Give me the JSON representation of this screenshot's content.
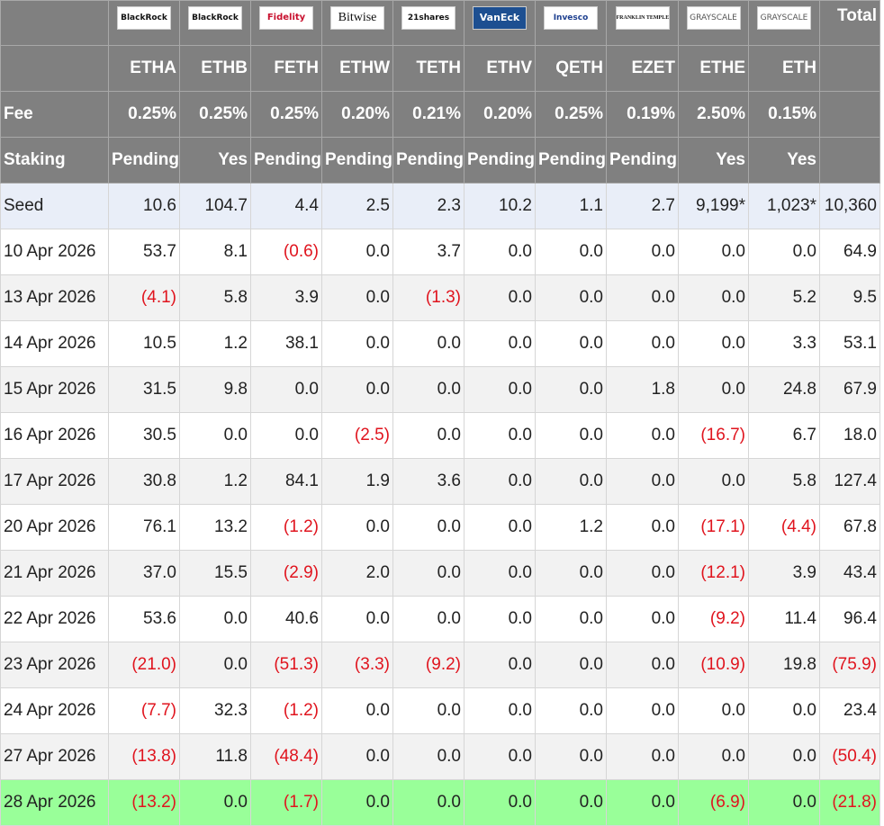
{
  "table": {
    "brands": [
      "BlackRock",
      "BlackRock",
      "Fidelity",
      "Bitwise",
      "21shares",
      "VanEck",
      "Invesco",
      "FRANKLIN TEMPLETON",
      "GRAYSCALE",
      "GRAYSCALE"
    ],
    "total_label": "Total",
    "tickers": [
      "ETHA",
      "ETHB",
      "FETH",
      "ETHW",
      "TETH",
      "ETHV",
      "QETH",
      "EZET",
      "ETHE",
      "ETH"
    ],
    "fee": [
      "Fee",
      "0.25%",
      "0.25%",
      "0.25%",
      "0.20%",
      "0.21%",
      "0.20%",
      "0.25%",
      "0.19%",
      "2.50%",
      "0.15%"
    ],
    "staking": [
      "Staking",
      "Pending",
      "Yes",
      "Pending",
      "Pending",
      "Pending",
      "Pending",
      "Pending",
      "Pending",
      "Yes",
      "Yes"
    ],
    "rows": [
      [
        "Seed",
        "10.6",
        "104.7",
        "4.4",
        "2.5",
        "2.3",
        "10.2",
        "1.1",
        "2.7",
        "9,199*",
        "1,023*",
        "10,360"
      ],
      [
        "10 Apr 2026",
        "53.7",
        "8.1",
        "(0.6)",
        "0.0",
        "3.7",
        "0.0",
        "0.0",
        "0.0",
        "0.0",
        "0.0",
        "64.9"
      ],
      [
        "13 Apr 2026",
        "(4.1)",
        "5.8",
        "3.9",
        "0.0",
        "(1.3)",
        "0.0",
        "0.0",
        "0.0",
        "0.0",
        "5.2",
        "9.5"
      ],
      [
        "14 Apr 2026",
        "10.5",
        "1.2",
        "38.1",
        "0.0",
        "0.0",
        "0.0",
        "0.0",
        "0.0",
        "0.0",
        "3.3",
        "53.1"
      ],
      [
        "15 Apr 2026",
        "31.5",
        "9.8",
        "0.0",
        "0.0",
        "0.0",
        "0.0",
        "0.0",
        "1.8",
        "0.0",
        "24.8",
        "67.9"
      ],
      [
        "16 Apr 2026",
        "30.5",
        "0.0",
        "0.0",
        "(2.5)",
        "0.0",
        "0.0",
        "0.0",
        "0.0",
        "(16.7)",
        "6.7",
        "18.0"
      ],
      [
        "17 Apr 2026",
        "30.8",
        "1.2",
        "84.1",
        "1.9",
        "3.6",
        "0.0",
        "0.0",
        "0.0",
        "0.0",
        "5.8",
        "127.4"
      ],
      [
        "20 Apr 2026",
        "76.1",
        "13.2",
        "(1.2)",
        "0.0",
        "0.0",
        "0.0",
        "1.2",
        "0.0",
        "(17.1)",
        "(4.4)",
        "67.8"
      ],
      [
        "21 Apr 2026",
        "37.0",
        "15.5",
        "(2.9)",
        "2.0",
        "0.0",
        "0.0",
        "0.0",
        "0.0",
        "(12.1)",
        "3.9",
        "43.4"
      ],
      [
        "22 Apr 2026",
        "53.6",
        "0.0",
        "40.6",
        "0.0",
        "0.0",
        "0.0",
        "0.0",
        "0.0",
        "(9.2)",
        "11.4",
        "96.4"
      ],
      [
        "23 Apr 2026",
        "(21.0)",
        "0.0",
        "(51.3)",
        "(3.3)",
        "(9.2)",
        "0.0",
        "0.0",
        "0.0",
        "(10.9)",
        "19.8",
        "(75.9)"
      ],
      [
        "24 Apr 2026",
        "(7.7)",
        "32.3",
        "(1.2)",
        "0.0",
        "0.0",
        "0.0",
        "0.0",
        "0.0",
        "0.0",
        "0.0",
        "23.4"
      ],
      [
        "27 Apr 2026",
        "(13.8)",
        "11.8",
        "(48.4)",
        "0.0",
        "0.0",
        "0.0",
        "0.0",
        "0.0",
        "0.0",
        "0.0",
        "(50.4)"
      ],
      [
        "28 Apr 2026",
        "(13.2)",
        "0.0",
        "(1.7)",
        "0.0",
        "0.0",
        "0.0",
        "0.0",
        "0.0",
        "(6.9)",
        "0.0",
        "(21.8)"
      ]
    ]
  }
}
